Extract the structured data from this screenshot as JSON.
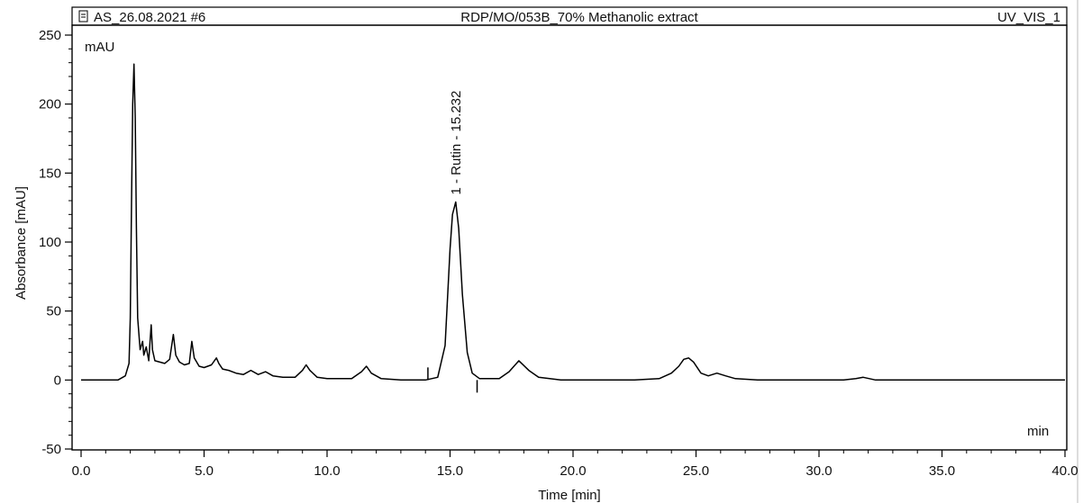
{
  "header": {
    "left": "AS_26.08.2021 #6",
    "center": "RDP/MO/053B_70% Methanolic extract",
    "right": "UV_VIS_1"
  },
  "chart_data": {
    "type": "line",
    "title": "RDP/MO/053B_70% Methanolic extract",
    "xlabel": "Time [min]",
    "ylabel": "Absorbance [mAU]",
    "y_unit": "mAU",
    "x_unit": "min",
    "xlim": [
      0,
      40
    ],
    "ylim": [
      -50,
      250
    ],
    "x_ticks": [
      0,
      5,
      10,
      15,
      20,
      25,
      30,
      35,
      40
    ],
    "x_tick_labels": [
      "0.0",
      "5.0",
      "10.0",
      "15.0",
      "20.0",
      "25.0",
      "30.0",
      "35.0",
      "40.0"
    ],
    "y_ticks": [
      -50,
      0,
      50,
      100,
      150,
      200,
      250
    ],
    "y_tick_labels": [
      "-50",
      "0",
      "50",
      "100",
      "150",
      "200",
      "250"
    ],
    "grid": false,
    "series": [
      {
        "x": [
          0,
          1.5,
          1.8,
          1.95,
          2.0,
          2.05,
          2.1,
          2.15,
          2.2,
          2.25,
          2.3,
          2.4,
          2.5,
          2.55,
          2.65,
          2.75,
          2.85,
          2.9,
          3.0,
          3.2,
          3.4,
          3.6,
          3.75,
          3.85,
          4.0,
          4.2,
          4.4,
          4.5,
          4.6,
          4.8,
          5.0,
          5.3,
          5.5,
          5.6,
          5.75,
          6.0,
          6.3,
          6.6,
          6.9,
          7.2,
          7.5,
          7.8,
          8.2,
          8.7,
          9.0,
          9.15,
          9.3,
          9.6,
          10.0,
          11.0,
          11.4,
          11.6,
          11.8,
          12.2,
          13.0,
          14.0,
          14.5,
          14.8,
          15.0,
          15.1,
          15.23,
          15.35,
          15.5,
          15.7,
          15.9,
          16.2,
          17.0,
          17.4,
          17.8,
          18.2,
          18.6,
          19.5,
          21.0,
          22.5,
          23.5,
          24.0,
          24.3,
          24.5,
          24.7,
          24.9,
          25.2,
          25.5,
          25.85,
          26.2,
          26.6,
          27.5,
          29.0,
          31.0,
          31.5,
          31.8,
          32.3,
          34.0,
          36.0,
          38.0,
          40.0
        ],
        "y": [
          0,
          0,
          3,
          12,
          45,
          130,
          200,
          229,
          190,
          110,
          45,
          22,
          28,
          18,
          24,
          14,
          40,
          22,
          14,
          13,
          12,
          15,
          33,
          18,
          13,
          11,
          12,
          28,
          16,
          10,
          9,
          11,
          16,
          12,
          8,
          7,
          5,
          4,
          7,
          4,
          6,
          3,
          2,
          2,
          7,
          11,
          7,
          2,
          1,
          1,
          6,
          10,
          5,
          1,
          0,
          0,
          2,
          25,
          95,
          120,
          129,
          110,
          62,
          20,
          5,
          1,
          1,
          6,
          14,
          7,
          2,
          0,
          0,
          0,
          1,
          5,
          10,
          15,
          16,
          13,
          5,
          3,
          5,
          3,
          1,
          0,
          0,
          0,
          1,
          2,
          0,
          0,
          0,
          0,
          0
        ]
      }
    ],
    "annotations": [
      {
        "text": "1 - Rutin - 15.232",
        "x": 15.232,
        "y": 129
      }
    ],
    "integration_marks": [
      14.1,
      16.1
    ]
  }
}
